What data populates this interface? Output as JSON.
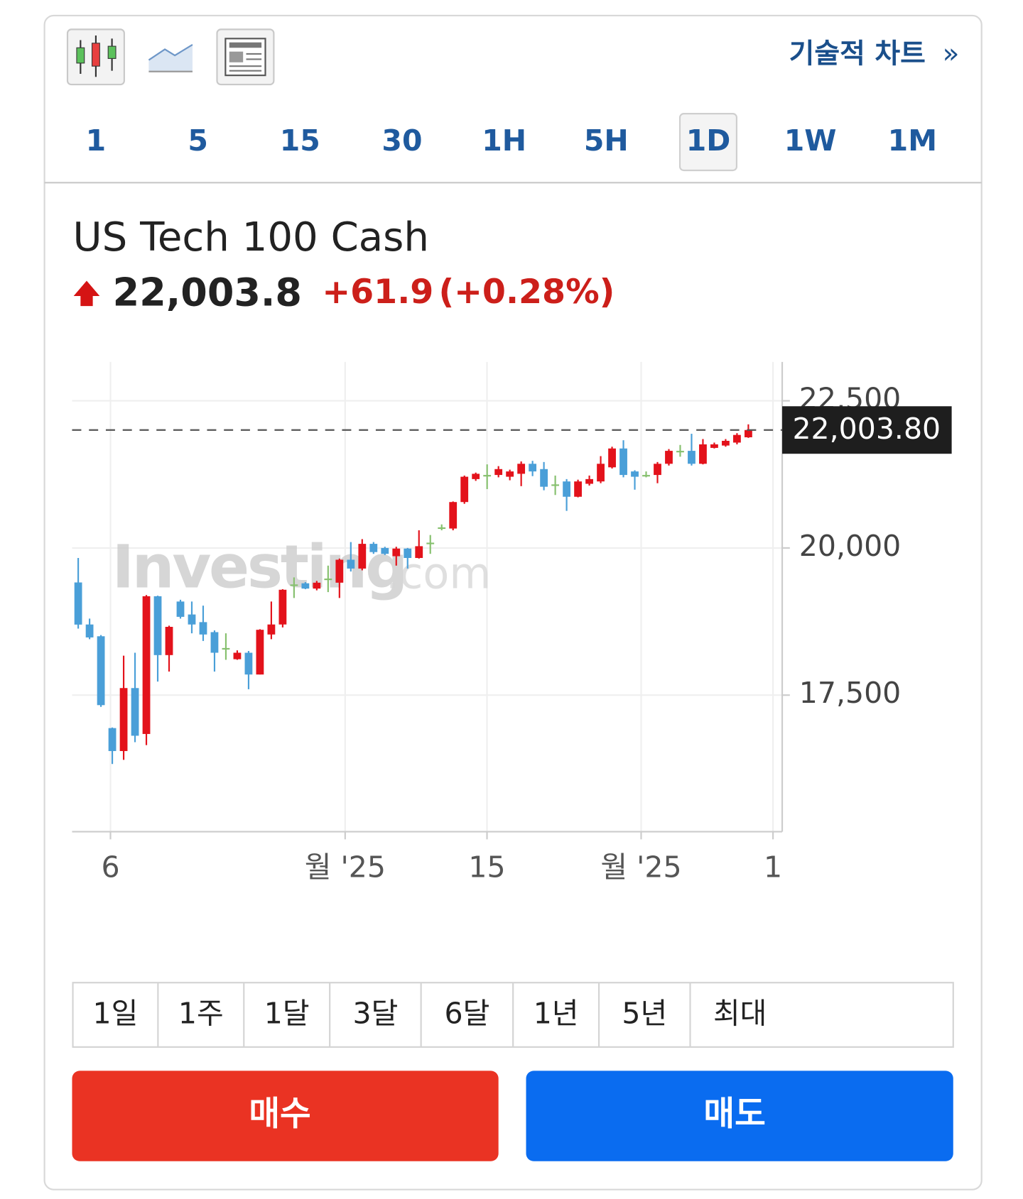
{
  "toolbar": {
    "technical_chart": "기술적 차트",
    "link_arrow": "»"
  },
  "intervals": [
    "1",
    "5",
    "15",
    "30",
    "1H",
    "5H",
    "1D",
    "1W",
    "1M"
  ],
  "active_interval": "1D",
  "instrument": {
    "name": "US Tech 100 Cash",
    "price": "22,003.8",
    "change": "+61.9",
    "change_percent": "(+0.28%)"
  },
  "chart_data": {
    "type": "candlestick",
    "watermark": {
      "brand": "Investing",
      "suffix": ".com"
    },
    "up_color": "#e3121b",
    "down_color": "#4a9fd8",
    "flat_color": "#86c06e",
    "open": [
      19414,
      18700,
      18500,
      16940,
      16550,
      17620,
      16840,
      19180,
      18180,
      19090,
      18870,
      18740,
      18570,
      18300,
      18110,
      18220,
      17850,
      18530,
      18700,
      19380,
      19400,
      19310,
      19480,
      19410,
      19800,
      19650,
      20070,
      20000,
      19860,
      19990,
      19830,
      20090,
      20350,
      20330,
      20780,
      21170,
      21240,
      21240,
      21210,
      21260,
      21430,
      21340,
      21080,
      21130,
      20870,
      21090,
      21130,
      21370,
      21690,
      21300,
      21240,
      21240,
      21430,
      21650,
      21650,
      21430,
      21700,
      21740,
      21790,
      21880
    ],
    "high": [
      19830,
      18800,
      18520,
      16950,
      18170,
      18220,
      19200,
      19190,
      18680,
      19120,
      19090,
      19020,
      18600,
      18550,
      18260,
      18250,
      18620,
      19090,
      19300,
      19500,
      19420,
      19440,
      19700,
      19820,
      20100,
      20150,
      20100,
      20020,
      20020,
      20000,
      20300,
      20220,
      20400,
      20790,
      21230,
      21280,
      21420,
      21390,
      21330,
      21470,
      21480,
      21460,
      21230,
      21170,
      21160,
      21230,
      21560,
      21720,
      21830,
      21320,
      21300,
      21460,
      21680,
      21750,
      21940,
      21850,
      21790,
      21850,
      21950,
      22100
    ],
    "low": [
      18630,
      18450,
      17300,
      16330,
      16400,
      16700,
      16650,
      17730,
      17900,
      18800,
      18550,
      18420,
      17900,
      18100,
      18100,
      17600,
      17850,
      18450,
      18650,
      19150,
      19300,
      19280,
      19250,
      19150,
      19600,
      19620,
      19900,
      19880,
      19700,
      19650,
      19820,
      19900,
      20300,
      20300,
      20750,
      21140,
      21000,
      21200,
      21150,
      21050,
      21220,
      20980,
      20900,
      20630,
      20860,
      21060,
      21100,
      21350,
      21200,
      20990,
      21200,
      21100,
      21400,
      21550,
      21400,
      21420,
      21690,
      21720,
      21760,
      21870
    ],
    "close": [
      18698,
      18480,
      17330,
      16550,
      17620,
      16810,
      19180,
      18180,
      18660,
      18830,
      18700,
      18530,
      18220,
      18300,
      18220,
      17850,
      18610,
      18700,
      19290,
      19380,
      19310,
      19410,
      19480,
      19800,
      19650,
      20070,
      19930,
      19900,
      19990,
      19830,
      20030,
      20090,
      20350,
      20780,
      21210,
      21260,
      21240,
      21340,
      21300,
      21430,
      21300,
      21040,
      21080,
      20870,
      21130,
      21170,
      21430,
      21690,
      21240,
      21210,
      21240,
      21430,
      21650,
      21650,
      21430,
      21760,
      21760,
      21820,
      21920,
      22003.8
    ],
    "xlim": [
      -0.54,
      61.98
    ],
    "xticks": [
      {
        "value": 2.84,
        "label": "6"
      },
      {
        "value": 23.5,
        "label": "월 '25"
      },
      {
        "value": 35.99,
        "label": "15"
      },
      {
        "value": 49.56,
        "label": "월 '25"
      },
      {
        "value": 61.17,
        "label": "1"
      }
    ],
    "ylim": [
      15180,
      23160
    ],
    "yticks": [
      {
        "value": 17500,
        "label": "17,500"
      },
      {
        "value": 20000,
        "label": "20,000"
      },
      {
        "value": 22500,
        "label": "22,500"
      }
    ],
    "last_price": {
      "value": 22003.8,
      "label": "22,003.80"
    },
    "grid": true
  },
  "ranges": [
    "1일",
    "1주",
    "1달",
    "3달",
    "6달",
    "1년",
    "5년",
    "최대"
  ],
  "buy": "매수",
  "sell": "매도"
}
